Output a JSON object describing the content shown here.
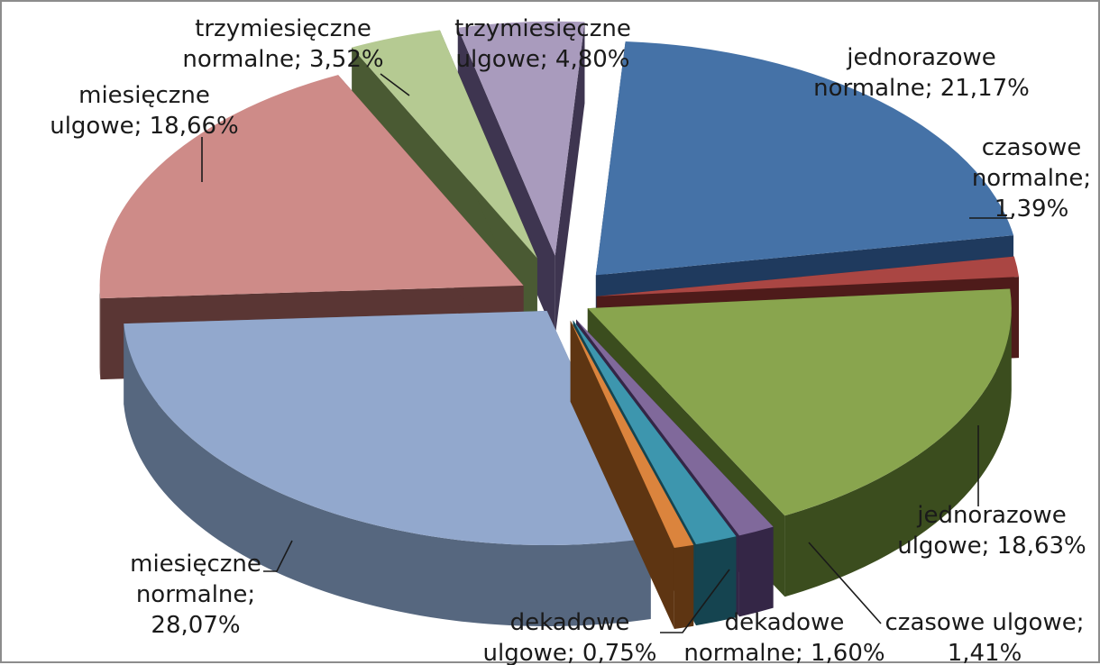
{
  "chart_data": {
    "type": "pie",
    "style": "3d-exploded",
    "title": "",
    "legend": "none",
    "series": [
      {
        "values": [
          21.17,
          1.39,
          18.63,
          1.41,
          1.6,
          0.75,
          28.07,
          18.66,
          3.52,
          4.8
        ]
      }
    ],
    "categories": [
      "jednorazowe normalne",
      "czasowe normalne",
      "jednorazowe ulgowe",
      "czasowe ulgowe",
      "dekadowe normalne",
      "dekadowe ulgowe",
      "miesięczne normalne",
      "miesięczne ulgowe",
      "trzymiesięczne normalne",
      "trzymiesięczne ulgowe"
    ],
    "slices": [
      {
        "name": "jednorazowe normalne",
        "value": 21.17,
        "label_lines": [
          "jednorazowe",
          "normalne; 21,17%"
        ],
        "color": "#4572A7",
        "side": "#1F3A5E"
      },
      {
        "name": "czasowe normalne",
        "value": 1.39,
        "label_lines": [
          "czasowe",
          "normalne;",
          "1,39%"
        ],
        "color": "#AA4643",
        "side": "#4E1B1A"
      },
      {
        "name": "jednorazowe ulgowe",
        "value": 18.63,
        "label_lines": [
          "jednorazowe",
          "ulgowe; 18,63%"
        ],
        "color": "#89A54E",
        "side": "#3B4D1E"
      },
      {
        "name": "czasowe ulgowe",
        "value": 1.41,
        "label_lines": [
          "czasowe ulgowe;",
          "1,41%"
        ],
        "color": "#80699B",
        "side": "#342646"
      },
      {
        "name": "dekadowe normalne",
        "value": 1.6,
        "label_lines": [
          "dekadowe",
          "normalne; 1,60%"
        ],
        "color": "#3D96AE",
        "side": "#154450"
      },
      {
        "name": "dekadowe ulgowe",
        "value": 0.75,
        "label_lines": [
          "dekadowe",
          "ulgowe; 0,75%"
        ],
        "color": "#DB843D",
        "side": "#5E3512"
      },
      {
        "name": "miesięczne normalne",
        "value": 28.07,
        "label_lines": [
          "miesięczne",
          "normalne;",
          "28,07%"
        ],
        "color": "#92A8CD",
        "side": "#56677F"
      },
      {
        "name": "miesięczne ulgowe",
        "value": 18.66,
        "label_lines": [
          "miesięczne",
          "ulgowe; 18,66%"
        ],
        "color": "#CE8B88",
        "side": "#5A3634"
      },
      {
        "name": "trzymiesięczne normalne",
        "value": 3.52,
        "label_lines": [
          "trzymiesięczne",
          "normalne; 3,52%"
        ],
        "color": "#B5CA92",
        "side": "#4A5A33"
      },
      {
        "name": "trzymiesięczne ulgowe",
        "value": 4.8,
        "label_lines": [
          "trzymiesięczne",
          "ulgowe; 4,80%"
        ],
        "color": "#A99BBD",
        "side": "#3E3550"
      }
    ]
  }
}
